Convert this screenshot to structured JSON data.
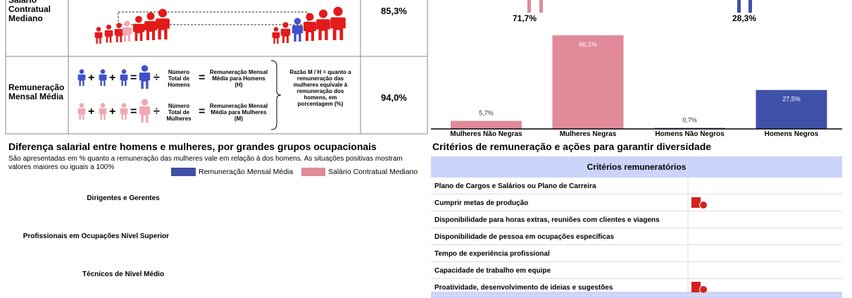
{
  "left_table": {
    "rows": [
      {
        "label": "Salário Contratual Mediano",
        "value": "85,3%"
      },
      {
        "label": "Remuneração Mensal Média",
        "value": "94,0%",
        "plus": "+",
        "equals": "=",
        "divide": "÷",
        "men": {
          "divisor": "Número Total de Homens",
          "result": "Remuneração Mensal Média para Homens (H)"
        },
        "women": {
          "divisor": "Número Total de Mulheres",
          "result": "Remuneração Mensal Média para Mulheres (M)"
        },
        "note": "Razão M / H = quanto a remuneração das mulheres equivale à remuneração dos homens, em porcentagem (%)"
      }
    ]
  },
  "race_chart": {
    "totals": [
      {
        "label": "71,7%",
        "color": "#e08a9a"
      },
      {
        "label": "28,3%",
        "color": "#3f51a8"
      }
    ],
    "categories": [
      "Mulheres Não Negras",
      "Mulheres Negras",
      "Homens Não Negros",
      "Homens Negros"
    ],
    "values": [
      5.7,
      66.1,
      0.7,
      27.5
    ],
    "value_labels": [
      "5,7%",
      "66,1%",
      "0,7%",
      "27,5%"
    ],
    "colors": [
      "#e08a9a",
      "#e08a9a",
      "#3f51a8",
      "#3f51a8"
    ]
  },
  "occupation_chart": {
    "title": "Diferença salarial entre homens e mulheres, por grandes grupos ocupacionais",
    "subtitle": "São apresentadas em % quanto a remuneração das mulheres vale em relação à dos homens. As situações positivas mostram valores maiores ou iguais a 100%",
    "legend": [
      {
        "name": "Remuneração Mensal Média",
        "color": "#3f51a8"
      },
      {
        "name": "Salário Contratual Mediano",
        "color": "#e08a9a"
      }
    ],
    "categories": [
      "Dirigentes e Gerentes",
      "Profissionais em Ocupações Nível Superior",
      "Técnicos de Nível Médio"
    ]
  },
  "criteria": {
    "title": "Critérios de remuneração e ações para garantir diversidade",
    "header": "Critérios remuneratórios",
    "rows": [
      {
        "text": "Plano de Cargos e Salários ou Plano de Carreira",
        "icon": false
      },
      {
        "text": "Cumprir metas de produção",
        "icon": true
      },
      {
        "text": "Disponibilidade para horas extras, reuniões com clientes e viagens",
        "icon": false
      },
      {
        "text": "Disponibilidade de pessoa em ocupações específicas",
        "icon": false
      },
      {
        "text": "Tempo de experiência profissional",
        "icon": false
      },
      {
        "text": "Capacidade de trabalho em equipe",
        "icon": false
      },
      {
        "text": "Proatividade, desenvolvimento de ideias e sugestões",
        "icon": true
      }
    ]
  }
}
